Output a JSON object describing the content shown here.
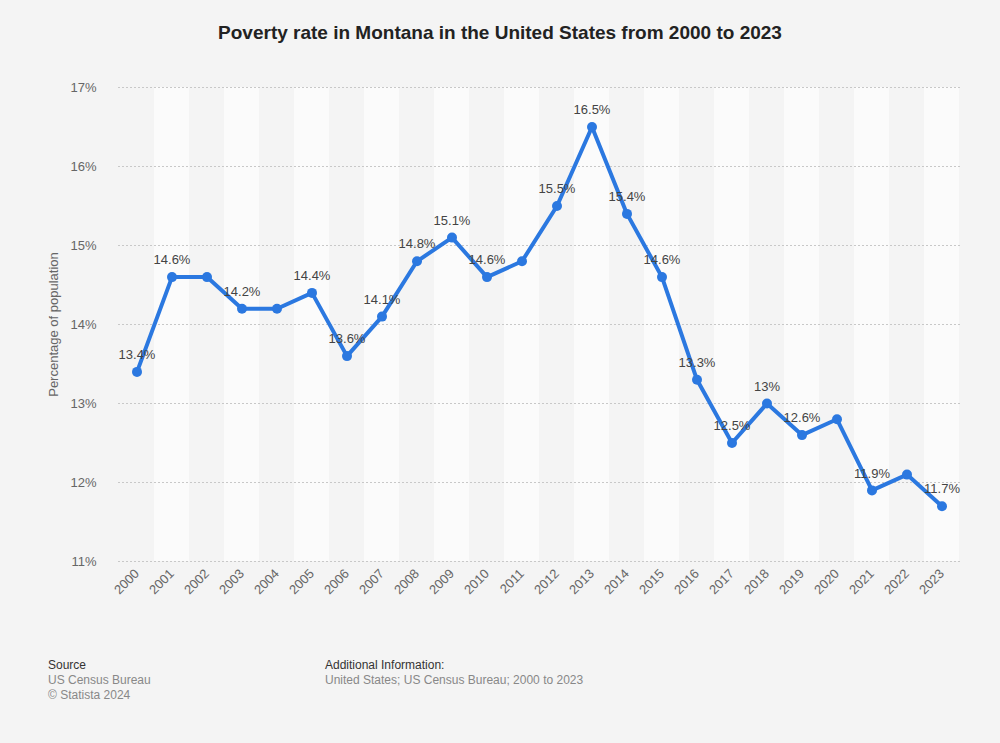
{
  "chart_data": {
    "type": "line",
    "title": "Poverty rate in Montana in the United States from 2000 to 2023",
    "y_label": "Percentage of population",
    "categories": [
      "2000",
      "2001",
      "2002",
      "2003",
      "2004",
      "2005",
      "2006",
      "2007",
      "2008",
      "2009",
      "2010",
      "2011",
      "2012",
      "2013",
      "2014",
      "2015",
      "2016",
      "2017",
      "2018",
      "2019",
      "2020",
      "2021",
      "2022",
      "2023"
    ],
    "values": [
      13.4,
      14.6,
      14.6,
      14.2,
      14.2,
      14.4,
      13.6,
      14.1,
      14.8,
      15.1,
      14.6,
      14.8,
      15.5,
      16.5,
      15.4,
      14.6,
      13.3,
      12.5,
      13,
      12.6,
      12.8,
      11.9,
      12.1,
      11.7
    ],
    "value_labels": [
      "13.4%",
      "14.6%",
      null,
      "14.2%",
      null,
      "14.4%",
      "13.6%",
      "14.1%",
      "14.8%",
      "15.1%",
      "14.6%",
      null,
      "15.5%",
      "16.5%",
      "15.4%",
      "14.6%",
      "13.3%",
      "12.5%",
      "13%",
      "12.6%",
      null,
      "11.9%",
      null,
      "11.7%"
    ],
    "color": "#2b78e0",
    "marker": "circle",
    "ylim": [
      11,
      17
    ],
    "yticks": [
      {
        "value": 11,
        "label": "11%"
      },
      {
        "value": 12,
        "label": "12%"
      },
      {
        "value": 13,
        "label": "13%"
      },
      {
        "value": 14,
        "label": "14%"
      },
      {
        "value": 15,
        "label": "15%"
      },
      {
        "value": 16,
        "label": "16%"
      },
      {
        "value": 17,
        "label": "17%"
      }
    ],
    "grid": true,
    "data_labels": true,
    "source_title": "Source",
    "source_lines": [
      "US Census Bureau",
      "© Statista 2024"
    ],
    "info_title": "Additional Information:",
    "info_lines": [
      "United States; US Census Bureau; 2000 to 2023"
    ]
  }
}
